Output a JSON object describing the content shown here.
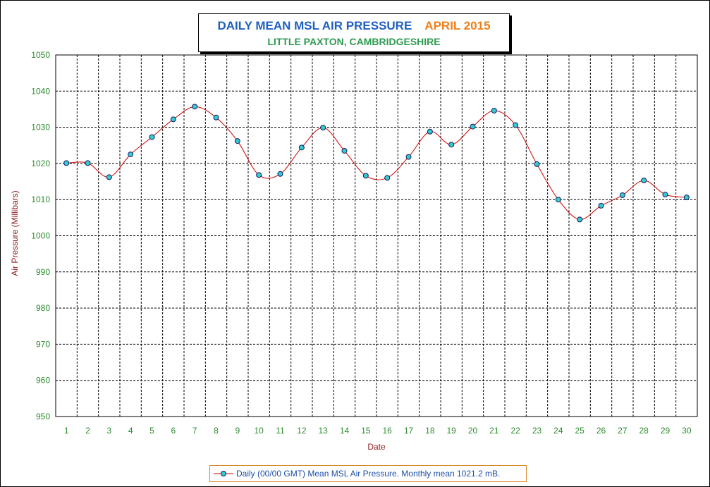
{
  "title": {
    "main": "DAILY MEAN MSL AIR PRESSURE",
    "month": "APRIL 2015",
    "subtitle": "LITTLE PAXTON, CAMBRIDGESHIRE"
  },
  "chart_data": {
    "type": "line",
    "title": "DAILY MEAN MSL AIR PRESSURE   APRIL 2015",
    "subtitle": "LITTLE PAXTON, CAMBRIDGESHIRE",
    "xlabel": "Date",
    "ylabel": "Air Pressure (Millibars)",
    "x": [
      1,
      2,
      3,
      4,
      5,
      6,
      7,
      8,
      9,
      10,
      11,
      12,
      13,
      14,
      15,
      16,
      17,
      18,
      19,
      20,
      21,
      22,
      23,
      24,
      25,
      26,
      27,
      28,
      29,
      30
    ],
    "series": [
      {
        "name": "Daily (00/00 GMT) Mean MSL Air Pressure. Monthly mean 1021.2 mB.",
        "values": [
          1020.1,
          1020.1,
          1016.2,
          1022.5,
          1027.3,
          1032.2,
          1035.7,
          1032.7,
          1026.2,
          1016.8,
          1017.1,
          1024.4,
          1029.9,
          1023.5,
          1016.6,
          1016.0,
          1021.8,
          1028.8,
          1025.2,
          1030.2,
          1034.6,
          1030.6,
          1019.8,
          1010.0,
          1004.5,
          1008.3,
          1011.2,
          1015.3,
          1011.4,
          1010.6
        ]
      }
    ],
    "ylim": [
      950,
      1050
    ],
    "yticks": [
      950,
      960,
      970,
      980,
      990,
      1000,
      1010,
      1020,
      1030,
      1040,
      1050
    ],
    "grid": true,
    "legend_position": "bottom-center",
    "colors": {
      "line": "#cc0000",
      "marker_fill": "#33cccc",
      "marker_edge": "#1a1a6a",
      "tick_labels": "#2e8b2e",
      "axis_labels": "#8b1a1a",
      "legend_border": "#d98a2a",
      "legend_text": "#1f4fa8"
    }
  }
}
